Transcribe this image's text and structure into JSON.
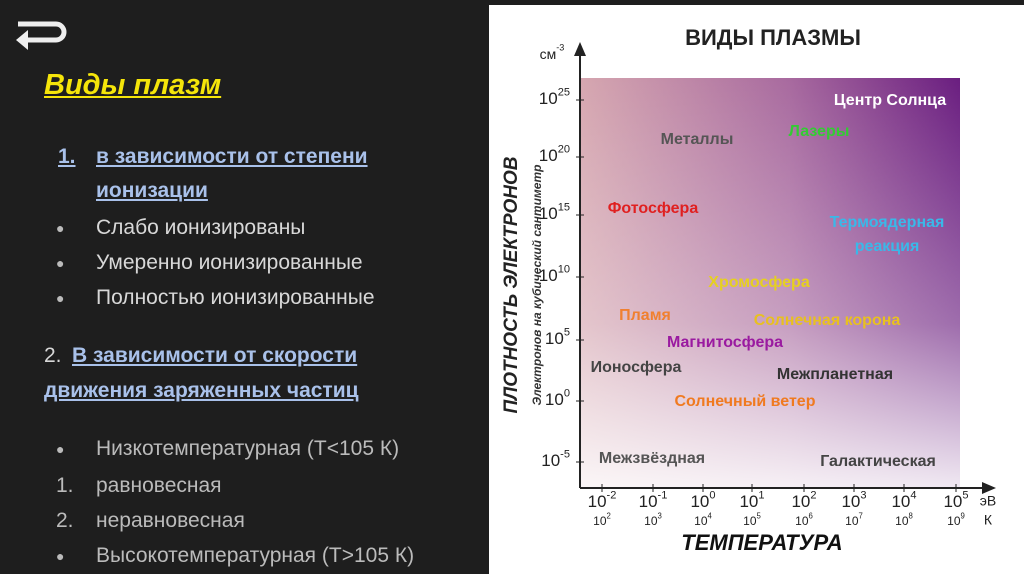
{
  "header": {
    "title": "Виды плазм"
  },
  "list": {
    "section1": {
      "number": "1.",
      "title_lines": [
        "в зависимости от степени",
        "ионизации"
      ],
      "items": [
        "Слабо ионизированы",
        "Умеренно ионизированные",
        "Полностью ионизированные"
      ]
    },
    "section2": {
      "number": "2.",
      "title_lines": [
        "В зависимости от скорости",
        "движения заряженных частиц"
      ],
      "items": [
        {
          "marker": null,
          "text": "Низкотемпературная (T<105 К)"
        },
        {
          "marker": "1.",
          "text": "равновесная"
        },
        {
          "marker": "2.",
          "text": "неравновесная"
        },
        {
          "marker": null,
          "text": "Высокотемпературная (T>105 К)"
        }
      ]
    }
  },
  "diagram": {
    "title": "ВИДЫ ПЛАЗМЫ",
    "y_unit": {
      "base": "см",
      "exp": "-3"
    },
    "y_label": "ПЛОТНОСТЬ ЭЛЕКТРОНОВ",
    "y_sublabel": "Электронов на кубический сантиметр",
    "x_label": "ТЕМПЕРАТУРА",
    "x_units": [
      "эВ",
      "К"
    ],
    "y_ticks": [
      {
        "base": "10",
        "exp": "25"
      },
      {
        "base": "10",
        "exp": "20"
      },
      {
        "base": "10",
        "exp": "15"
      },
      {
        "base": "10",
        "exp": "10"
      },
      {
        "base": "10",
        "exp": "5"
      },
      {
        "base": "10",
        "exp": "0"
      },
      {
        "base": "10",
        "exp": "-5"
      }
    ],
    "x_ticks_ev": [
      {
        "base": "10",
        "exp": "-2"
      },
      {
        "base": "10",
        "exp": "-1"
      },
      {
        "base": "10",
        "exp": "0"
      },
      {
        "base": "10",
        "exp": "1"
      },
      {
        "base": "10",
        "exp": "2"
      },
      {
        "base": "10",
        "exp": "3"
      },
      {
        "base": "10",
        "exp": "4"
      },
      {
        "base": "10",
        "exp": "5"
      }
    ],
    "x_ticks_k": [
      {
        "base": "10",
        "exp": "2"
      },
      {
        "base": "10",
        "exp": "3"
      },
      {
        "base": "10",
        "exp": "4"
      },
      {
        "base": "10",
        "exp": "5"
      },
      {
        "base": "10",
        "exp": "6"
      },
      {
        "base": "10",
        "exp": "7"
      },
      {
        "base": "10",
        "exp": "8"
      },
      {
        "base": "10",
        "exp": "9"
      }
    ],
    "regions": [
      {
        "label": "Центр Солнца",
        "color": "#ffffff"
      },
      {
        "label": "Металлы",
        "color": "#555555"
      },
      {
        "label": "Лазеры",
        "color": "#33cc33"
      },
      {
        "label": "Фотосфера",
        "color": "#e02020"
      },
      {
        "label": "Термоядерная",
        "color": "#3ab8e8"
      },
      {
        "label": "реакция",
        "color": "#3ab8e8"
      },
      {
        "label": "Хромосфера",
        "color": "#e6d020"
      },
      {
        "label": "Пламя",
        "color": "#f08030"
      },
      {
        "label": "Солнечная корона",
        "color": "#e8c020"
      },
      {
        "label": "Магнитосфера",
        "color": "#9a1aa0"
      },
      {
        "label": "Ионосфера",
        "color": "#444444"
      },
      {
        "label": "Межпланетная",
        "color": "#333333"
      },
      {
        "label": "Солнечный ветер",
        "color": "#f07a20"
      },
      {
        "label": "Межзвёздная",
        "color": "#555555"
      },
      {
        "label": "Галактическая",
        "color": "#444444"
      }
    ]
  }
}
